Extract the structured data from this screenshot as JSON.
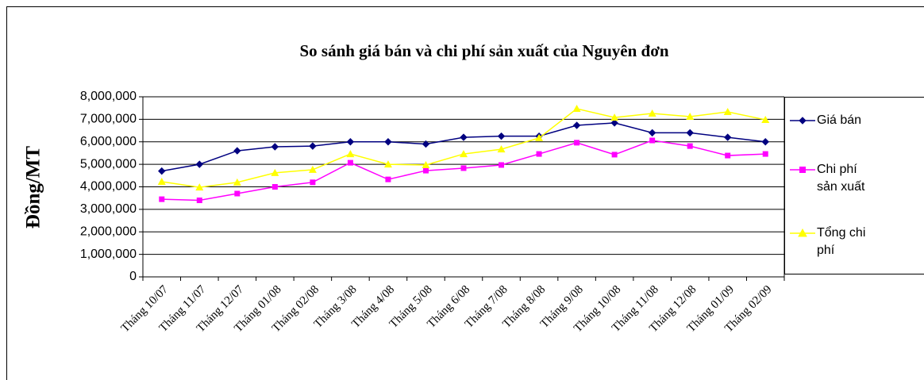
{
  "chart_data": {
    "type": "line",
    "title": "So sánh giá bán và chi phí sản xuất của Nguyên đơn",
    "y_label": "Đồng/MT",
    "categories": [
      "Tháng 10/07",
      "Tháng 11/07",
      "Tháng 12/07",
      "Tháng 01/08",
      "Tháng 02/08",
      "Tháng 3/08",
      "Tháng 4/08",
      "Tháng 5/08",
      "Tháng 6/08",
      "Tháng 7/08",
      "Tháng 8/08",
      "Tháng 9/08",
      "Tháng 10/08",
      "Tháng 11/08",
      "Tháng 12/08",
      "Tháng 01/09",
      "Tháng 02/09"
    ],
    "series": [
      {
        "name": "Giá bán",
        "color": "#000080",
        "marker": "diamond",
        "values": [
          4700000,
          5000000,
          5600000,
          5780000,
          5810000,
          6000000,
          6000000,
          5900000,
          6200000,
          6250000,
          6250000,
          6730000,
          6840000,
          6400000,
          6400000,
          6200000,
          6000000
        ]
      },
      {
        "name": "Chi phí sản xuất",
        "color": "#ff00ff",
        "marker": "square",
        "values": [
          3450000,
          3400000,
          3700000,
          4000000,
          4200000,
          5070000,
          4330000,
          4720000,
          4830000,
          4970000,
          5460000,
          5960000,
          5430000,
          6060000,
          5810000,
          5390000,
          5460000
        ]
      },
      {
        "name": "Tổng chi phí",
        "color": "#ffff00",
        "marker": "triangle",
        "values": [
          4230000,
          3980000,
          4200000,
          4620000,
          4760000,
          5460000,
          5000000,
          4970000,
          5460000,
          5670000,
          6170000,
          7470000,
          7080000,
          7260000,
          7120000,
          7330000,
          6980000
        ]
      }
    ],
    "ylim": [
      0,
      8000000
    ],
    "yticks": [
      0,
      {
        "value": 1000000,
        "label": "1,000,000"
      },
      {
        "value": 2000000,
        "label": "2,000,000"
      },
      {
        "value": 3000000,
        "label": "3,000,000"
      },
      {
        "value": 4000000,
        "label": "4,000,000"
      },
      {
        "value": 5000000,
        "label": "5,000,000"
      },
      {
        "value": 6000000,
        "label": "6,000,000"
      },
      {
        "value": 7000000,
        "label": "7,000,000"
      },
      {
        "value": 8000000,
        "label": "8,000,000"
      }
    ],
    "grid": true
  }
}
